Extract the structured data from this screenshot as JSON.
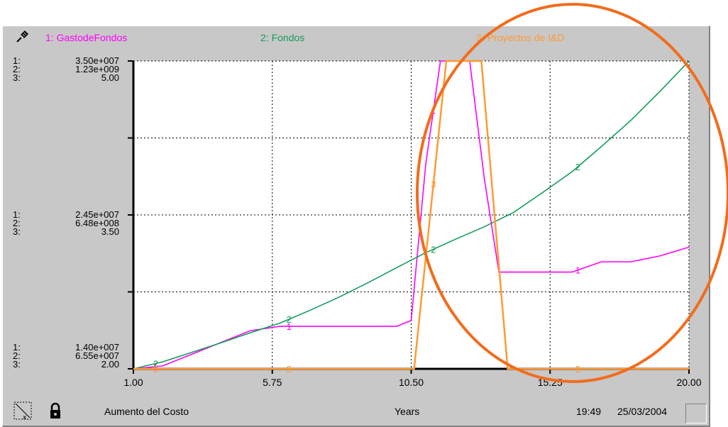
{
  "legend": [
    {
      "num": "1",
      "name": "1: GastodeFondos",
      "color": "#ff00ff"
    },
    {
      "num": "2",
      "name": "2: Fondos",
      "color": "#139c5a"
    },
    {
      "num": "3",
      "name": "3: Proyectos de I&D",
      "color": "#ff9a33"
    }
  ],
  "axis_labels": {
    "top": [
      "3.50e+007",
      "1.23e+009",
      "5.00"
    ],
    "mid": [
      "2.45e+007",
      "6.48e+008",
      "3.50"
    ],
    "bottom": [
      "1.40e+007",
      "6.55e+007",
      "2.00"
    ],
    "prefixes": [
      "1:",
      "2:",
      "3:"
    ]
  },
  "status": {
    "page_title": "Aumento del Costo",
    "x_unit": "Years",
    "time": "19:49",
    "date": "25/03/2004"
  },
  "annotation_color": "#f26c1c",
  "chart_data": {
    "type": "line",
    "xlabel": "Years",
    "x_ticks": [
      "1.00",
      "5.75",
      "10.50",
      "15.25",
      "20.00"
    ],
    "xlim": [
      1.0,
      20.0
    ],
    "grid": true,
    "series": [
      {
        "name": "1: GastodeFondos",
        "ylim": [
          14000000,
          35000000
        ],
        "x": [
          1.0,
          2.0,
          3.0,
          4.0,
          5.0,
          6.0,
          7.0,
          8.0,
          9.0,
          10.0,
          10.5,
          11.0,
          11.5,
          12.0,
          12.5,
          13.0,
          13.5,
          14.0,
          15.0,
          16.0,
          17.0,
          18.0,
          19.0,
          20.0
        ],
        "y": [
          14000000,
          14200000,
          15000000,
          15800000,
          16600000,
          16900000,
          16900000,
          16900000,
          16900000,
          16900000,
          17300000,
          28000000,
          35000000,
          35000000,
          35000000,
          27000000,
          20600000,
          20600000,
          20600000,
          20600000,
          21300000,
          21300000,
          21700000,
          22300000
        ]
      },
      {
        "name": "2: Fondos",
        "ylim": [
          65500000,
          1230000000
        ],
        "x": [
          1.0,
          2.0,
          3.0,
          4.0,
          5.0,
          6.0,
          7.0,
          8.0,
          9.0,
          10.0,
          11.0,
          12.0,
          13.0,
          14.0,
          15.0,
          16.0,
          17.0,
          18.0,
          19.0,
          20.0
        ],
        "y": [
          65500000,
          92000000,
          128000000,
          164000000,
          202000000,
          238000000,
          285000000,
          335000000,
          390000000,
          448000000,
          505000000,
          555000000,
          603000000,
          657000000,
          733000000,
          811000000,
          906000000,
          1004000000,
          1114000000,
          1230000000
        ]
      },
      {
        "name": "3: Proyectos de I&D",
        "ylim": [
          2.0,
          5.0
        ],
        "x": [
          1.0,
          10.6,
          11.7,
          12.9,
          13.8,
          20.0
        ],
        "y": [
          2.0,
          2.0,
          5.0,
          5.0,
          2.0,
          2.0
        ]
      }
    ]
  }
}
